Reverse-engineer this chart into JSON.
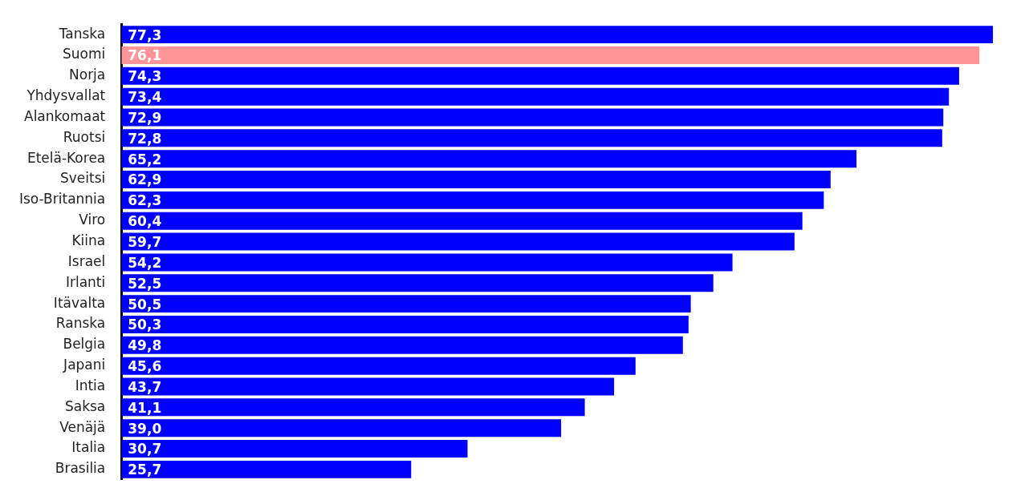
{
  "chart_data": {
    "type": "bar",
    "orientation": "horizontal",
    "categories": [
      "Tanska",
      "Suomi",
      "Norja",
      "Yhdysvallat",
      "Alankomaat",
      "Ruotsi",
      "Etelä-Korea",
      "Sveitsi",
      "Iso-Britannia",
      "Viro",
      "Kiina",
      "Israel",
      "Irlanti",
      "Itävalta",
      "Ranska",
      "Belgia",
      "Japani",
      "Intia",
      "Saksa",
      "Venäjä",
      "Italia",
      "Brasilia"
    ],
    "values": [
      77.3,
      76.1,
      74.3,
      73.4,
      72.9,
      72.8,
      65.2,
      62.9,
      62.3,
      60.4,
      59.7,
      54.2,
      52.5,
      50.5,
      50.3,
      49.8,
      45.6,
      43.7,
      41.1,
      39.0,
      30.7,
      25.7
    ],
    "value_labels": [
      "77,3",
      "76,1",
      "74,3",
      "73,4",
      "72,9",
      "72,8",
      "65,2",
      "62,9",
      "62,3",
      "60,4",
      "59,7",
      "54,2",
      "52,5",
      "50,5",
      "50,3",
      "49,8",
      "45,6",
      "43,7",
      "41,1",
      "39,0",
      "30,7",
      "25,7"
    ],
    "colors": [
      "#0000ff",
      "#ff9499",
      "#0000ff",
      "#0000ff",
      "#0000ff",
      "#0000ff",
      "#0000ff",
      "#0000ff",
      "#0000ff",
      "#0000ff",
      "#0000ff",
      "#0000ff",
      "#0000ff",
      "#0000ff",
      "#0000ff",
      "#0000ff",
      "#0000ff",
      "#0000ff",
      "#0000ff",
      "#0000ff",
      "#0000ff",
      "#0000ff"
    ],
    "tick_labels": "y",
    "grid": false,
    "legend": false
  }
}
